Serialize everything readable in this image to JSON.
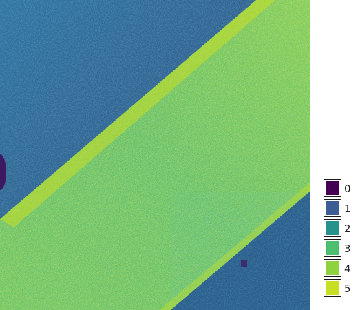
{
  "legend": {
    "items": [
      {
        "label": "0",
        "color": "#440154"
      },
      {
        "label": "1",
        "color": "#3b5c94"
      },
      {
        "label": "2",
        "color": "#26928c"
      },
      {
        "label": "3",
        "color": "#4cbf6f"
      },
      {
        "label": "4",
        "color": "#8fd13f"
      },
      {
        "label": "5",
        "color": "#c8df24"
      }
    ]
  }
}
